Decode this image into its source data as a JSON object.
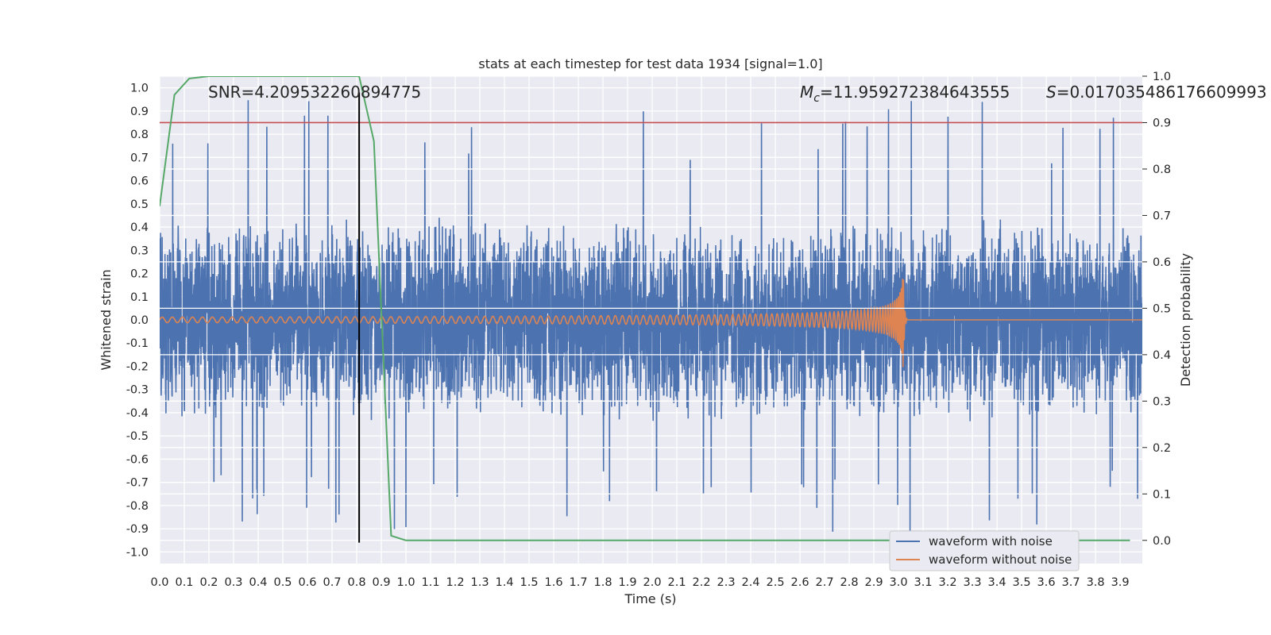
{
  "chart_data": {
    "type": "line",
    "title": "stats at each timestep for test data 1934 [signal=1.0]",
    "xlabel": "Time (s)",
    "ylabel": "Whitened strain",
    "y2label": "Detection probability",
    "xlim": [
      0.0,
      3.99
    ],
    "ylim": [
      -1.05,
      1.05
    ],
    "y2lim": [
      -0.05,
      1.0
    ],
    "x_ticks": [
      "0.0",
      "0.1",
      "0.2",
      "0.3",
      "0.4",
      "0.5",
      "0.6",
      "0.7",
      "0.8",
      "0.9",
      "1.0",
      "1.1",
      "1.2",
      "1.3",
      "1.4",
      "1.5",
      "1.6",
      "1.7",
      "1.8",
      "1.9",
      "2.0",
      "2.1",
      "2.2",
      "2.3",
      "2.4",
      "2.5",
      "2.6",
      "2.7",
      "2.8",
      "2.9",
      "3.0",
      "3.1",
      "3.2",
      "3.3",
      "3.4",
      "3.5",
      "3.6",
      "3.7",
      "3.8",
      "3.9"
    ],
    "y_ticks": [
      "1.0",
      "0.9",
      "0.8",
      "0.7",
      "0.6",
      "0.5",
      "0.4",
      "0.3",
      "0.2",
      "0.1",
      "0.0",
      "-0.1",
      "-0.2",
      "-0.3",
      "-0.4",
      "-0.5",
      "-0.6",
      "-0.7",
      "-0.8",
      "-0.9",
      "-1.0"
    ],
    "y2_ticks": [
      "1.0",
      "0.9",
      "0.8",
      "0.7",
      "0.6",
      "0.5",
      "0.4",
      "0.3",
      "0.2",
      "0.1",
      "0.0"
    ],
    "annotations": {
      "snr": "SNR=4.209532260894775",
      "mc_symbol": "M",
      "mc_sub": "c",
      "mc_value": "=11.959272384643555",
      "s_symbol": "S",
      "s_value": "=0.017035486176609993"
    },
    "threshold": {
      "axis": "y2",
      "value": 0.9,
      "color": "#c44e52"
    },
    "event_marker": {
      "x": 0.81,
      "y_range": [
        -0.96,
        0.98
      ],
      "color": "#000000"
    },
    "legend": {
      "placement": "lower-right",
      "entries": [
        "waveform with noise",
        "waveform without noise"
      ]
    },
    "series": [
      {
        "name": "waveform with noise",
        "axis": "y",
        "color": "#4c72b0",
        "kind": "noise",
        "envelope": 0.45,
        "duration": 3.99
      },
      {
        "name": "waveform without noise",
        "axis": "y",
        "color": "#dd8452",
        "kind": "chirp",
        "t_merge": 3.02,
        "peak": 0.21,
        "base_amp": 0.012
      },
      {
        "name": "detection probability",
        "axis": "y2",
        "color": "#55a868",
        "x": [
          0.0,
          0.06,
          0.12,
          0.2,
          0.3,
          0.5,
          0.7,
          0.81,
          0.87,
          0.94,
          1.0,
          1.2,
          2.0,
          3.0,
          3.94
        ],
        "values": [
          0.72,
          0.96,
          0.995,
          1.0,
          1.0,
          1.0,
          1.0,
          1.0,
          0.86,
          0.01,
          0.0,
          0.0,
          0.0,
          0.0,
          0.0
        ]
      }
    ]
  }
}
